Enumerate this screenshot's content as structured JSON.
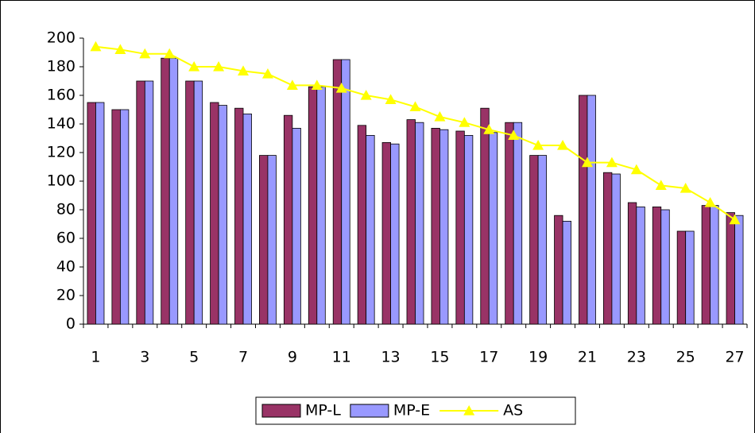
{
  "chart_data": {
    "type": "bar_line",
    "categories": [
      "1",
      null,
      "3",
      null,
      "5",
      null,
      "7",
      null,
      "9",
      null,
      "11",
      null,
      "13",
      null,
      "15",
      null,
      "17",
      null,
      "19",
      null,
      "21",
      null,
      "23",
      null,
      "25",
      null,
      "27"
    ],
    "series": [
      {
        "name": "MP-L",
        "type": "bar",
        "color": "#993366",
        "values": [
          155,
          150,
          170,
          186,
          170,
          155,
          151,
          118,
          146,
          166,
          185,
          139,
          127,
          143,
          137,
          135,
          151,
          141,
          118,
          76,
          160,
          106,
          85,
          82,
          65,
          83,
          78
        ]
      },
      {
        "name": "MP-E",
        "type": "bar",
        "color": "#9999ff",
        "values": [
          155,
          150,
          170,
          186,
          170,
          153,
          147,
          118,
          137,
          166,
          185,
          132,
          126,
          141,
          136,
          132,
          134,
          141,
          118,
          72,
          160,
          105,
          82,
          80,
          65,
          83,
          76
        ]
      },
      {
        "name": "AS",
        "type": "line",
        "color": "#ffff00",
        "values": [
          194,
          192,
          189,
          189,
          180,
          180,
          177,
          175,
          167,
          167,
          165,
          160,
          157,
          152,
          145,
          141,
          136,
          132,
          125,
          125,
          113,
          113,
          108,
          97,
          95,
          85,
          73
        ]
      }
    ],
    "ylim": [
      0,
      200
    ],
    "yticks": [
      0,
      20,
      40,
      60,
      80,
      100,
      120,
      140,
      160,
      180,
      200
    ],
    "grid": false,
    "legend": "bottom"
  }
}
